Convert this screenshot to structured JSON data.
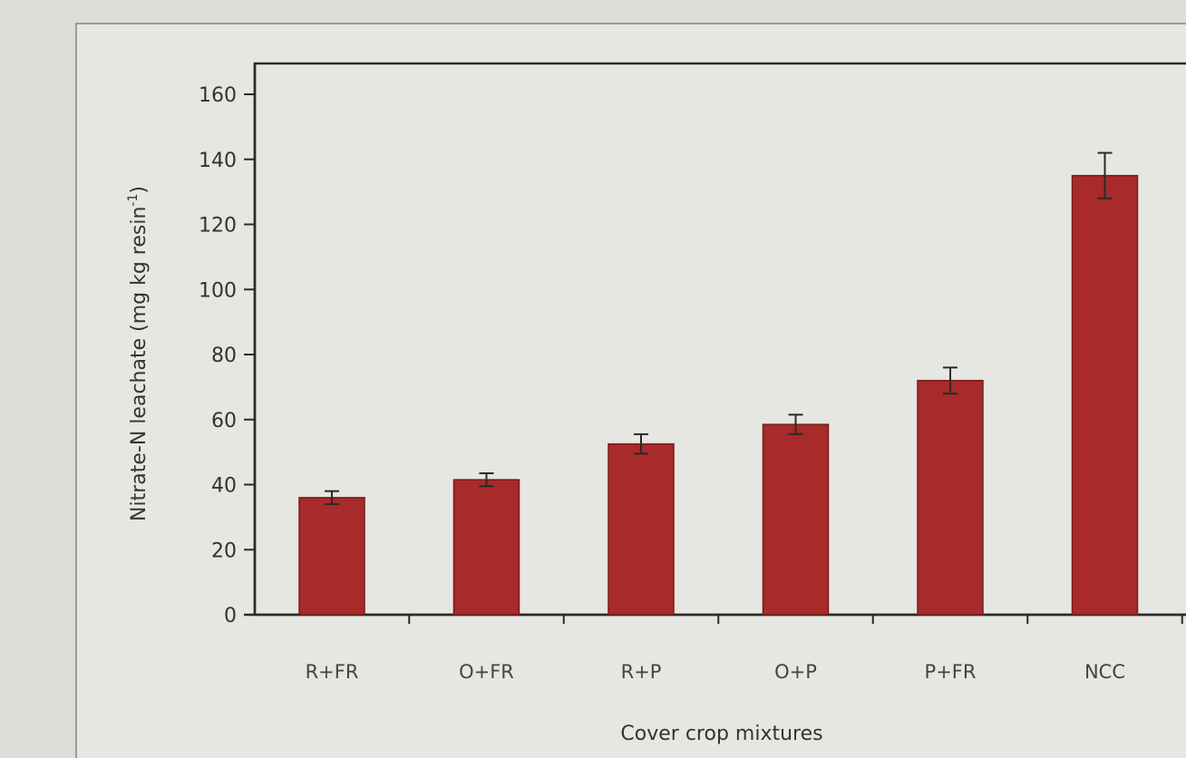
{
  "chart_data": {
    "type": "bar",
    "title": "",
    "xlabel": "Cover crop mixtures",
    "ylabel": "Nitrate-N leachate (mg kg resin",
    "ylabel_sup": "-1",
    "ylabel_close": ")",
    "categories": [
      "R+FR",
      "O+FR",
      "R+P",
      "O+P",
      "P+FR",
      "NCC"
    ],
    "values": [
      36,
      41.5,
      52.5,
      58.5,
      72,
      135
    ],
    "errors": [
      2,
      2,
      3,
      3,
      4,
      7
    ],
    "ylim": [
      0,
      160
    ],
    "yticks": [
      0,
      20,
      40,
      60,
      80,
      100,
      120,
      140,
      160
    ],
    "grid": false,
    "legend": "none",
    "bar_color": "#a82a2a"
  }
}
